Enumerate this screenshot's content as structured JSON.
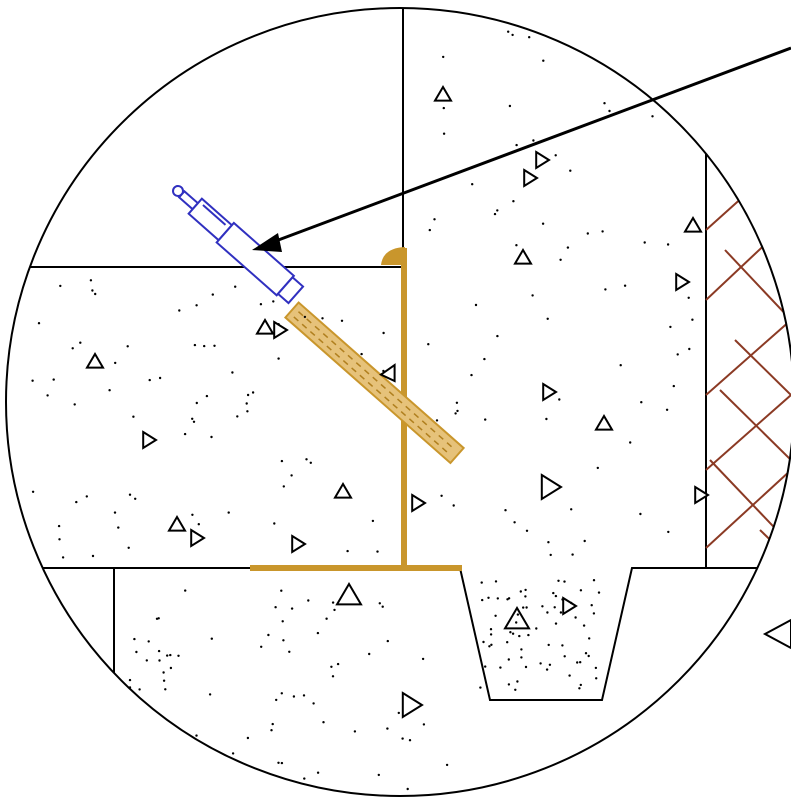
{
  "diagram": {
    "kind": "construction joint detail callout",
    "colors": {
      "line": "#000000",
      "background": "#ffffff",
      "waterstop_gold": "#C9962C",
      "waterstop_fill": "#E6C27A",
      "sealant_gun_blue": "#3030C0",
      "brick_brown": "#8B3A24"
    },
    "elements": [
      "detail-circle",
      "concrete-slab",
      "concrete-wall",
      "footing",
      "keyway",
      "waterstop-vertical",
      "waterstop-horizontal",
      "sealant-cartridge",
      "sealant-bead",
      "brick-masonry",
      "callout-arrow"
    ],
    "icons": [
      "aggregate-triangle-icon",
      "sealant-gun-icon",
      "arrowhead-icon"
    ]
  }
}
